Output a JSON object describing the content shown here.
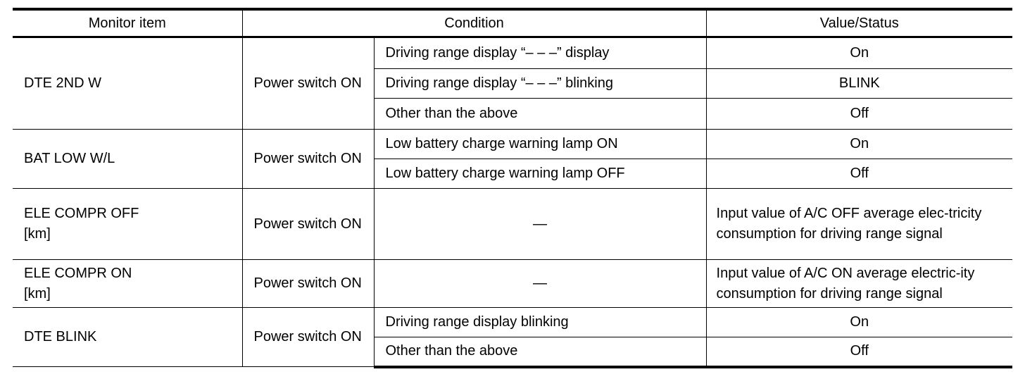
{
  "headers": {
    "monitor_item": "Monitor item",
    "condition": "Condition",
    "value_status": "Value/Status"
  },
  "rows": [
    {
      "item": "DTE 2ND W",
      "condition": "Power switch ON",
      "subs": [
        {
          "condition": "Driving range display “– – –” display",
          "value": "On"
        },
        {
          "condition": "Driving range display “– – –” blinking",
          "value": "BLINK"
        },
        {
          "condition": "Other than the above",
          "value": "Off"
        }
      ]
    },
    {
      "item": "BAT LOW W/L",
      "condition": "Power switch ON",
      "subs": [
        {
          "condition": "Low battery charge warning lamp ON",
          "value": "On"
        },
        {
          "condition": "Low battery charge warning lamp OFF",
          "value": "Off"
        }
      ]
    },
    {
      "item": "ELE COMPR OFF [km]",
      "condition": "Power switch ON",
      "subs": [
        {
          "condition": "—",
          "value": "Input value of A/C OFF average elec-tricity consumption for driving range signal"
        }
      ]
    },
    {
      "item": "ELE COMPR ON [km]",
      "condition": "Power switch ON",
      "subs": [
        {
          "condition": "—",
          "value": "Input value of A/C ON average electric-ity consumption for driving range signal"
        }
      ]
    },
    {
      "item": "DTE BLINK",
      "condition": "Power switch ON",
      "subs": [
        {
          "condition": "Driving range display blinking",
          "value": "On"
        },
        {
          "condition": "Other than the above",
          "value": "Off"
        }
      ]
    }
  ]
}
